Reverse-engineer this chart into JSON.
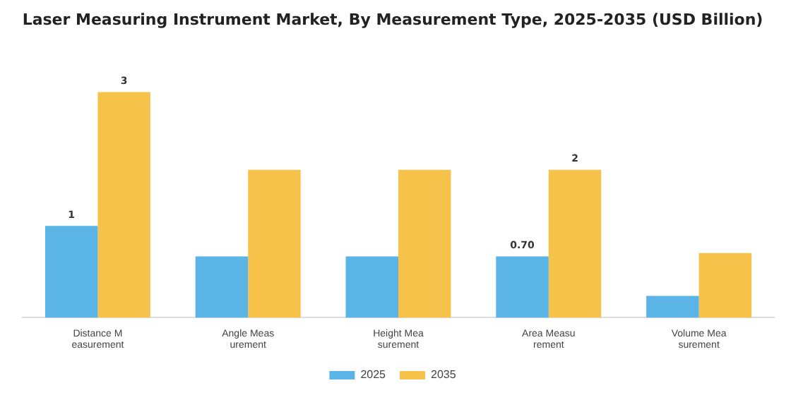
{
  "chart_data": {
    "type": "bar",
    "title": "Laser Measuring Instrument Market, By Measurement Type, 2025-2035 (USD Billion)",
    "categories": [
      "Distance M\neasurement",
      "Angle Meas\nurement",
      "Height Mea\nsurement",
      "Area Measu\nrement",
      "Volume Mea\nsurement"
    ],
    "series": [
      {
        "name": "2025",
        "color": "#5ab4e5",
        "values": [
          1.05,
          0.7,
          0.7,
          0.7,
          0.25
        ],
        "value_labels": [
          "1",
          null,
          null,
          "0.70",
          null
        ]
      },
      {
        "name": "2035",
        "color": "#f7c24a",
        "values": [
          2.58,
          1.69,
          1.69,
          1.69,
          0.74
        ],
        "value_labels": [
          "3",
          null,
          null,
          "2",
          null
        ]
      }
    ],
    "tick_labels": "x",
    "grid": false,
    "legend": "bottom"
  }
}
